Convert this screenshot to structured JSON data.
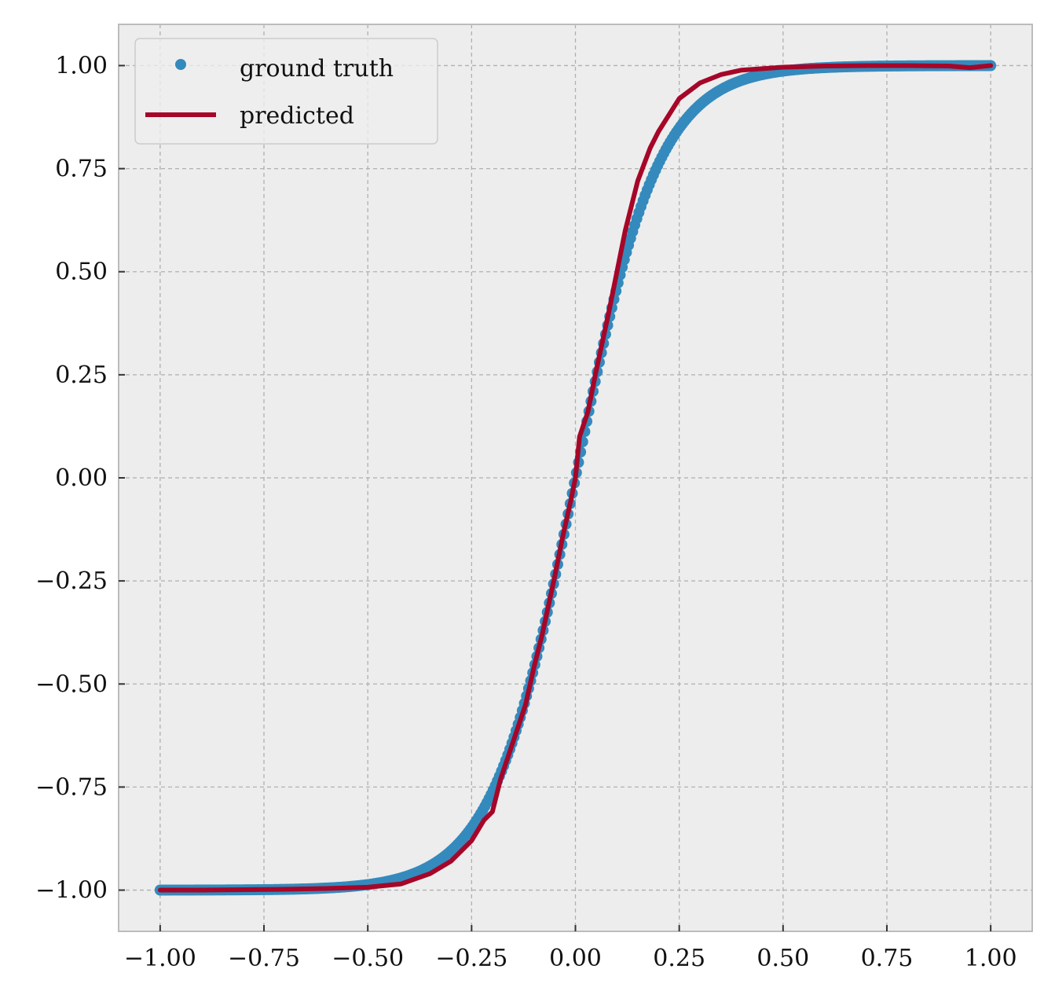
{
  "chart_data": {
    "type": "line",
    "title": "",
    "xlabel": "",
    "ylabel": "",
    "xlim": [
      -1.1,
      1.1
    ],
    "ylim": [
      -1.1,
      1.1
    ],
    "grid": true,
    "legend_position": "top-left",
    "x_ticks": [
      -1.0,
      -0.75,
      -0.5,
      -0.25,
      0.0,
      0.25,
      0.5,
      0.75,
      1.0
    ],
    "y_ticks": [
      -1.0,
      -0.75,
      -0.5,
      -0.25,
      0.0,
      0.25,
      0.5,
      0.75,
      1.0
    ],
    "x_tick_labels": [
      "−1.00",
      "−0.75",
      "−0.50",
      "−0.25",
      "0.00",
      "0.25",
      "0.50",
      "0.75",
      "1.00"
    ],
    "y_tick_labels": [
      "−1.00",
      "−0.75",
      "−0.50",
      "−0.25",
      "0.00",
      "0.25",
      "0.50",
      "0.75",
      "1.00"
    ],
    "colors": {
      "ground_truth": "#348abd",
      "predicted": "#a60628",
      "plot_background": "#ededed",
      "grid": "#b0b0b0",
      "spine": "#bcbcbc"
    },
    "series": [
      {
        "name": "ground truth",
        "style": "markers",
        "function": "tanh(5x)",
        "x_range": [
          -1.0,
          1.0
        ],
        "point_count": 400
      },
      {
        "name": "predicted",
        "style": "line",
        "x": [
          -1.0,
          -0.9,
          -0.8,
          -0.7,
          -0.6,
          -0.5,
          -0.42,
          -0.35,
          -0.3,
          -0.25,
          -0.22,
          -0.2,
          -0.18,
          -0.15,
          -0.12,
          -0.1,
          -0.08,
          -0.05,
          -0.03,
          -0.01,
          0.0,
          0.01,
          0.03,
          0.05,
          0.08,
          0.1,
          0.12,
          0.15,
          0.18,
          0.2,
          0.25,
          0.3,
          0.35,
          0.4,
          0.5,
          0.6,
          0.7,
          0.8,
          0.9,
          0.95,
          1.0
        ],
        "y": [
          -1.0,
          -1.0,
          -0.999,
          -0.998,
          -0.996,
          -0.993,
          -0.985,
          -0.96,
          -0.93,
          -0.88,
          -0.83,
          -0.81,
          -0.73,
          -0.64,
          -0.55,
          -0.46,
          -0.38,
          -0.24,
          -0.14,
          -0.05,
          0.0,
          0.1,
          0.16,
          0.26,
          0.4,
          0.5,
          0.6,
          0.72,
          0.8,
          0.84,
          0.92,
          0.958,
          0.978,
          0.989,
          0.996,
          0.999,
          1.0,
          1.0,
          0.999,
          0.995,
          1.0
        ]
      }
    ]
  }
}
